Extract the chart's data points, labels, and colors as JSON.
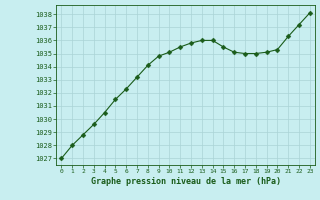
{
  "x": [
    0,
    1,
    2,
    3,
    4,
    5,
    6,
    7,
    8,
    9,
    10,
    11,
    12,
    13,
    14,
    15,
    16,
    17,
    18,
    19,
    20,
    21,
    22,
    23
  ],
  "y": [
    1027.0,
    1028.0,
    1028.8,
    1029.6,
    1030.5,
    1031.5,
    1032.3,
    1033.2,
    1034.1,
    1034.8,
    1035.1,
    1035.5,
    1035.8,
    1036.0,
    1036.0,
    1035.5,
    1035.1,
    1035.0,
    1035.0,
    1035.1,
    1035.3,
    1036.3,
    1037.2,
    1038.1
  ],
  "line_color": "#1a5c1a",
  "marker": "D",
  "marker_size": 2.5,
  "bg_color": "#c8eef0",
  "grid_color": "#aad4d6",
  "axis_color": "#1a5c1a",
  "tick_color": "#1a5c1a",
  "label_color": "#1a5c1a",
  "ylim": [
    1026.5,
    1038.7
  ],
  "yticks": [
    1027,
    1028,
    1029,
    1030,
    1031,
    1032,
    1033,
    1034,
    1035,
    1036,
    1037,
    1038
  ],
  "xticks": [
    0,
    1,
    2,
    3,
    4,
    5,
    6,
    7,
    8,
    9,
    10,
    11,
    12,
    13,
    14,
    15,
    16,
    17,
    18,
    19,
    20,
    21,
    22,
    23
  ],
  "xlabel": "Graphe pression niveau de la mer (hPa)",
  "ytick_fontsize": 5.0,
  "xtick_fontsize": 4.5,
  "xlabel_fontsize": 6.0
}
